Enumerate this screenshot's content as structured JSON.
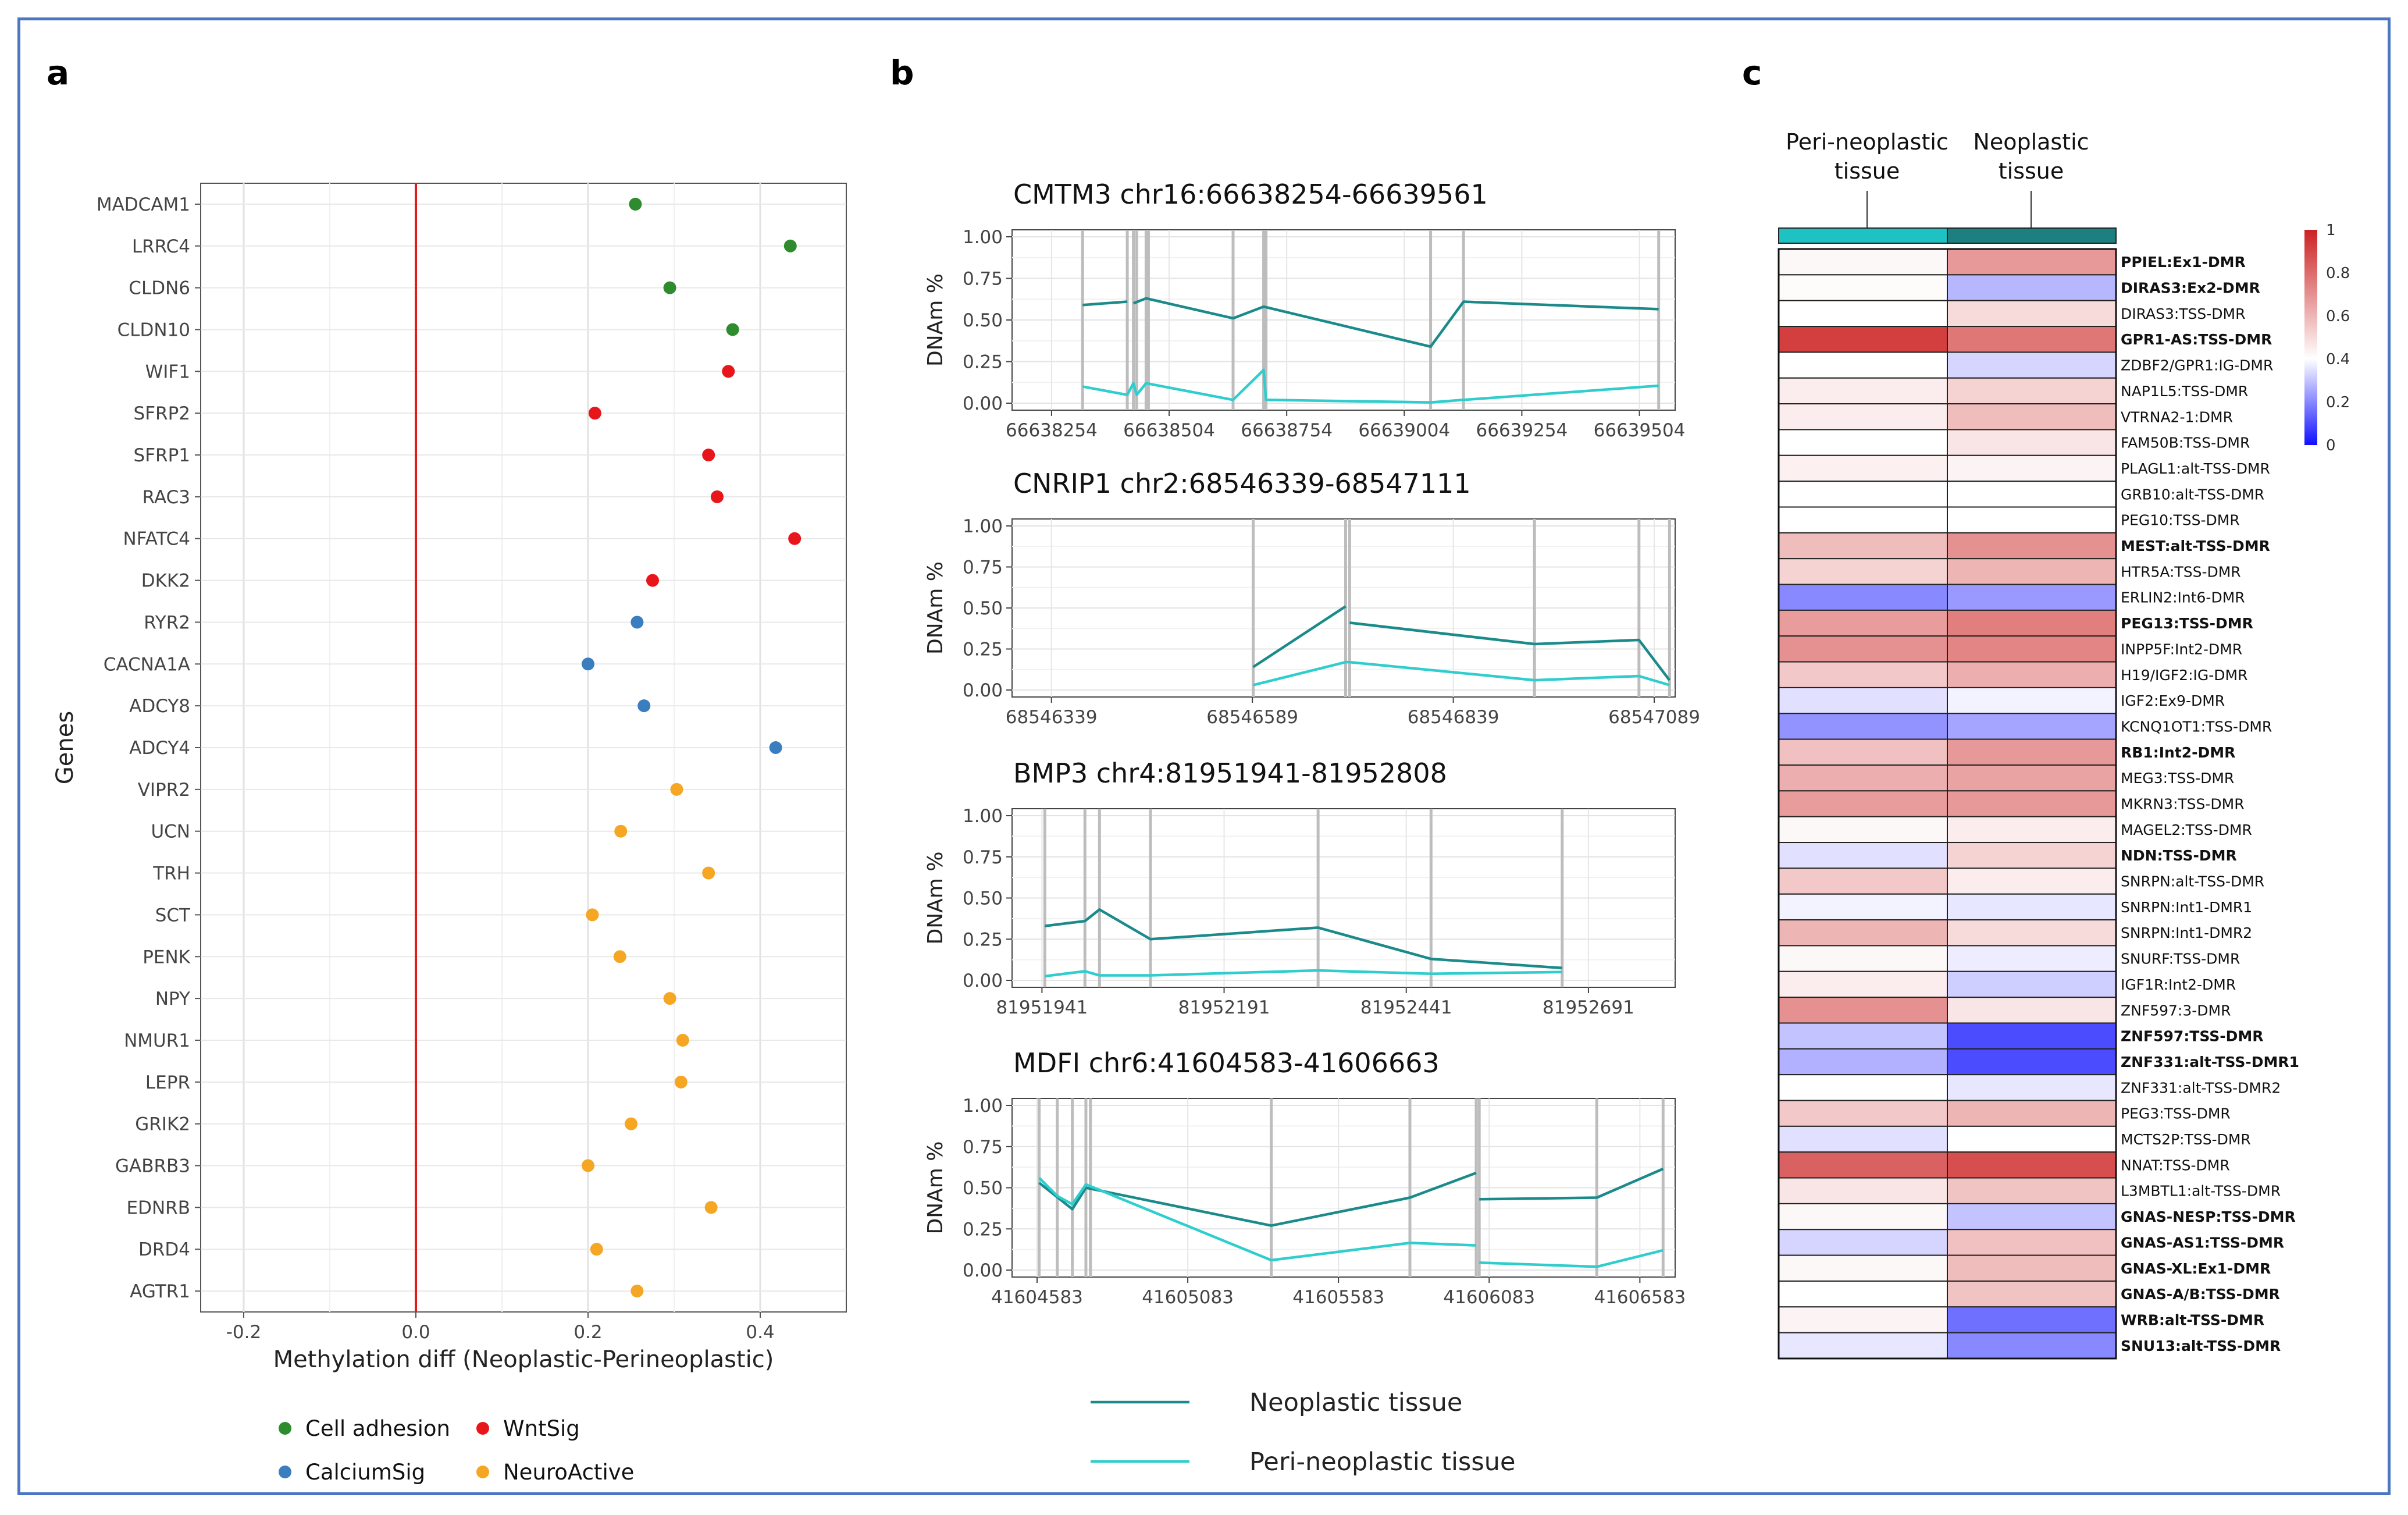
{
  "chart_data": [
    {
      "panel": "a",
      "type": "scatter",
      "title": "",
      "xlabel": "Methylation diff (Neoplastic-Perineoplastic)",
      "ylabel": "Genes",
      "xlim": [
        -0.25,
        0.5
      ],
      "xticks": [
        -0.2,
        0,
        0.2,
        0.4
      ],
      "xtick_labels": [
        "-0.2",
        "0.0",
        "0.2",
        "0.4"
      ],
      "reference_line": 0,
      "genes": [
        "MADCAM1",
        "LRRC4",
        "CLDN6",
        "CLDN10",
        "WIF1",
        "SFRP2",
        "SFRP1",
        "RAC3",
        "NFATC4",
        "DKK2",
        "RYR2",
        "CACNA1A",
        "ADCY8",
        "ADCY4",
        "VIPR2",
        "UCN",
        "TRH",
        "SCT",
        "PENK",
        "NPY",
        "NMUR1",
        "LEPR",
        "GRIK2",
        "GABRB3",
        "EDNRB",
        "DRD4",
        "AGTR1"
      ],
      "values": [
        0.255,
        0.435,
        0.295,
        0.368,
        0.363,
        0.208,
        0.34,
        0.35,
        0.44,
        0.275,
        0.257,
        0.2,
        0.265,
        0.418,
        0.303,
        0.238,
        0.34,
        0.205,
        0.237,
        0.295,
        0.31,
        0.308,
        0.25,
        0.2,
        0.343,
        0.21,
        0.257
      ],
      "groups": [
        "Cell adhesion",
        "Cell adhesion",
        "Cell adhesion",
        "Cell adhesion",
        "WntSig",
        "WntSig",
        "WntSig",
        "WntSig",
        "WntSig",
        "WntSig",
        "CalciumSig",
        "CalciumSig",
        "CalciumSig",
        "CalciumSig",
        "NeuroActive",
        "NeuroActive",
        "NeuroActive",
        "NeuroActive",
        "NeuroActive",
        "NeuroActive",
        "NeuroActive",
        "NeuroActive",
        "NeuroActive",
        "NeuroActive",
        "NeuroActive",
        "NeuroActive",
        "NeuroActive"
      ],
      "legend": [
        {
          "label": "Cell adhesion",
          "color": "#2e8b2e"
        },
        {
          "label": "WntSig",
          "color": "#e8161b"
        },
        {
          "label": "CalciumSig",
          "color": "#3a7ebf"
        },
        {
          "label": "NeuroActive",
          "color": "#f5a623"
        }
      ]
    },
    {
      "panel": "b",
      "type": "line",
      "ylabel": "DNAm %",
      "yticks": [
        0,
        0.25,
        0.5,
        0.75,
        1
      ],
      "ytick_labels": [
        "0.00",
        "0.25",
        "0.50",
        "0.75",
        "1.00"
      ],
      "legend": [
        {
          "label": "Neoplastic tissue",
          "color": "#1a8a8a"
        },
        {
          "label": "Peri-neoplastic tissue",
          "color": "#2fcdcd"
        }
      ],
      "subplots": [
        {
          "title": "CMTM3 chr16:66638254-66639561",
          "xlim": [
            66638170,
            66639580
          ],
          "xticks": [
            66638254,
            66638504,
            66638754,
            66639004,
            66639254,
            66639504
          ],
          "xtick_labels": [
            "66638254",
            "66638504",
            "66638754",
            "66639004",
            "66639254",
            "66639504"
          ],
          "cpg_positions": [
            66638320,
            66638415,
            66638428,
            66638435,
            66638455,
            66638460,
            66638640,
            66638705,
            66638710,
            66639060,
            66639130,
            66639545
          ],
          "series": [
            {
              "name": "Neoplastic tissue",
              "segments": [
                [
                  [
                    66638320,
                    0.59
                  ],
                  [
                    66638415,
                    0.61
                  ]
                ],
                [
                  [
                    66638428,
                    0.6
                  ],
                  [
                    66638455,
                    0.63
                  ],
                  [
                    66638640,
                    0.51
                  ],
                  [
                    66638705,
                    0.58
                  ],
                  [
                    66639060,
                    0.34
                  ],
                  [
                    66639130,
                    0.61
                  ],
                  [
                    66639545,
                    0.565
                  ]
                ]
              ]
            },
            {
              "name": "Peri-neoplastic tissue",
              "segments": [
                [
                  [
                    66638320,
                    0.1
                  ],
                  [
                    66638415,
                    0.05
                  ],
                  [
                    66638428,
                    0.12
                  ],
                  [
                    66638435,
                    0.05
                  ],
                  [
                    66638455,
                    0.12
                  ],
                  [
                    66638640,
                    0.02
                  ],
                  [
                    66638705,
                    0.2
                  ],
                  [
                    66638710,
                    0.02
                  ],
                  [
                    66639060,
                    0.005
                  ],
                  [
                    66639130,
                    0.02
                  ],
                  [
                    66639545,
                    0.105
                  ]
                ]
              ]
            }
          ]
        },
        {
          "title": "CNRIP1 chr2:68546339-68547111",
          "xlim": [
            68546290,
            68547115
          ],
          "xticks": [
            68546339,
            68546589,
            68546839,
            68547089
          ],
          "xtick_labels": [
            "68546339",
            "68546589",
            "68546839",
            "68547089"
          ],
          "cpg_positions": [
            68546590,
            68546705,
            68546710,
            68546940,
            68547070,
            68547108
          ],
          "series": [
            {
              "name": "Neoplastic tissue",
              "segments": [
                [
                  [
                    68546590,
                    0.14
                  ],
                  [
                    68546705,
                    0.51
                  ]
                ],
                [
                  [
                    68546710,
                    0.41
                  ],
                  [
                    68546940,
                    0.28
                  ],
                  [
                    68547070,
                    0.305
                  ],
                  [
                    68547108,
                    0.06
                  ]
                ]
              ]
            },
            {
              "name": "Peri-neoplastic tissue",
              "segments": [
                [
                  [
                    68546590,
                    0.03
                  ],
                  [
                    68546705,
                    0.17
                  ],
                  [
                    68546710,
                    0.17
                  ],
                  [
                    68546940,
                    0.06
                  ],
                  [
                    68547070,
                    0.085
                  ],
                  [
                    68547108,
                    0.03
                  ]
                ]
              ]
            }
          ]
        },
        {
          "title": "BMP3 chr4:81951941-81952808",
          "xlim": [
            81951900,
            81952810
          ],
          "xticks": [
            81951941,
            81952191,
            81952441,
            81952691
          ],
          "xtick_labels": [
            "81951941",
            "81952191",
            "81952441",
            "81952691"
          ],
          "cpg_positions": [
            81951945,
            81952000,
            81952020,
            81952090,
            81952320,
            81952475,
            81952655
          ],
          "series": [
            {
              "name": "Neoplastic tissue",
              "segments": [
                [
                  [
                    81951945,
                    0.33
                  ],
                  [
                    81952000,
                    0.36
                  ],
                  [
                    81952020,
                    0.43
                  ],
                  [
                    81952090,
                    0.25
                  ],
                  [
                    81952320,
                    0.32
                  ],
                  [
                    81952475,
                    0.13
                  ],
                  [
                    81952655,
                    0.075
                  ]
                ]
              ]
            },
            {
              "name": "Peri-neoplastic tissue",
              "segments": [
                [
                  [
                    81951945,
                    0.025
                  ],
                  [
                    81952000,
                    0.055
                  ],
                  [
                    81952020,
                    0.03
                  ],
                  [
                    81952090,
                    0.03
                  ],
                  [
                    81952320,
                    0.06
                  ],
                  [
                    81952475,
                    0.04
                  ],
                  [
                    81952655,
                    0.05
                  ]
                ]
              ]
            }
          ]
        },
        {
          "title": "MDFI chr6:41604583-41606663",
          "xlim": [
            41604500,
            41606700
          ],
          "xticks": [
            41604583,
            41605083,
            41605583,
            41606083,
            41606583
          ],
          "xtick_labels": [
            "41604583",
            "41605083",
            "41605583",
            "41606083",
            "41606583"
          ],
          "cpg_positions": [
            41604590,
            41604650,
            41604700,
            41604745,
            41604760,
            41605360,
            41605820,
            41606040,
            41606050,
            41606440,
            41606660
          ],
          "series": [
            {
              "name": "Neoplastic tissue",
              "segments": [
                [
                  [
                    41604590,
                    0.53
                  ],
                  [
                    41604700,
                    0.37
                  ],
                  [
                    41604745,
                    0.5
                  ],
                  [
                    41605360,
                    0.27
                  ],
                  [
                    41605820,
                    0.44
                  ],
                  [
                    41606040,
                    0.59
                  ]
                ],
                [
                  [
                    41606050,
                    0.43
                  ],
                  [
                    41606440,
                    0.44
                  ],
                  [
                    41606660,
                    0.615
                  ]
                ]
              ]
            },
            {
              "name": "Peri-neoplastic tissue",
              "segments": [
                [
                  [
                    41604590,
                    0.56
                  ],
                  [
                    41604650,
                    0.45
                  ],
                  [
                    41604700,
                    0.4
                  ],
                  [
                    41604745,
                    0.52
                  ],
                  [
                    41605360,
                    0.06
                  ],
                  [
                    41605820,
                    0.165
                  ],
                  [
                    41606040,
                    0.15
                  ]
                ],
                [
                  [
                    41606050,
                    0.045
                  ],
                  [
                    41606440,
                    0.02
                  ],
                  [
                    41606660,
                    0.12
                  ]
                ]
              ]
            }
          ]
        }
      ]
    },
    {
      "panel": "c",
      "type": "heatmap",
      "columns": [
        "Peri-neoplastic tissue",
        "Neoplastic tissue"
      ],
      "column_bar_colors": [
        "#1fc2c2",
        "#1d7f7f"
      ],
      "color_scale": {
        "min": 0,
        "mid": 0.4,
        "max": 1,
        "low_color": "#1010ff",
        "mid_color": "#ffffff",
        "high_color": "#cc2222"
      },
      "colorbar_ticks": [
        0,
        0.2,
        0.4,
        0.6,
        0.8,
        1
      ],
      "colorbar_tick_labels": [
        "0",
        "0.2",
        "0.4",
        "0.6",
        "0.8",
        "1"
      ],
      "rows": [
        "PPIEL:Ex1-DMR",
        "DIRAS3:Ex2-DMR",
        "DIRAS3:TSS-DMR",
        "GPR1-AS:TSS-DMR",
        "ZDBF2/GPR1:IG-DMR",
        "NAP1L5:TSS-DMR",
        "VTRNA2-1:DMR",
        "FAM50B:TSS-DMR",
        "PLAGL1:alt-TSS-DMR",
        "GRB10:alt-TSS-DMR",
        "PEG10:TSS-DMR",
        "MEST:alt-TSS-DMR",
        "HTR5A:TSS-DMR",
        "ERLIN2:Int6-DMR",
        "PEG13:TSS-DMR",
        "INPP5F:Int2-DMR",
        "H19/IGF2:IG-DMR",
        "IGF2:Ex9-DMR",
        "KCNQ1OT1:TSS-DMR",
        "RB1:Int2-DMR",
        "MEG3:TSS-DMR",
        "MKRN3:TSS-DMR",
        "MAGEL2:TSS-DMR",
        "NDN:TSS-DMR",
        "SNRPN:alt-TSS-DMR",
        "SNRPN:Int1-DMR1",
        "SNRPN:Int1-DMR2",
        "SNURF:TSS-DMR",
        "IGF1R:Int2-DMR",
        "ZNF597:3-DMR",
        "ZNF597:TSS-DMR",
        "ZNF331:alt-TSS-DMR1",
        "ZNF331:alt-TSS-DMR2",
        "PEG3:TSS-DMR",
        "MCTS2P:TSS-DMR",
        "NNAT:TSS-DMR",
        "L3MBTL1:alt-TSS-DMR",
        "GNAS-NESP:TSS-DMR",
        "GNAS-AS1:TSS-DMR",
        "GNAS-XL:Ex1-DMR",
        "GNAS-A/B:TSS-DMR",
        "WRB:alt-TSS-DMR",
        "SNU13:alt-TSS-DMR"
      ],
      "bold_rows": [
        true,
        true,
        false,
        true,
        false,
        false,
        false,
        false,
        false,
        false,
        false,
        true,
        false,
        false,
        true,
        false,
        false,
        false,
        false,
        true,
        false,
        false,
        false,
        true,
        false,
        false,
        false,
        false,
        false,
        false,
        true,
        true,
        false,
        false,
        false,
        false,
        false,
        true,
        true,
        true,
        true,
        true,
        true
      ],
      "peri_values": [
        0.42,
        0.41,
        0.4,
        0.92,
        0.4,
        0.45,
        0.45,
        0.4,
        0.44,
        0.4,
        0.4,
        0.58,
        0.52,
        0.2,
        0.67,
        0.7,
        0.55,
        0.35,
        0.22,
        0.57,
        0.62,
        0.67,
        0.42,
        0.35,
        0.55,
        0.38,
        0.6,
        0.42,
        0.45,
        0.7,
        0.3,
        0.27,
        0.4,
        0.55,
        0.35,
        0.83,
        0.47,
        0.42,
        0.33,
        0.42,
        0.4,
        0.43,
        0.36
      ],
      "neo_values": [
        0.68,
        0.28,
        0.5,
        0.77,
        0.33,
        0.52,
        0.58,
        0.47,
        0.43,
        0.4,
        0.4,
        0.7,
        0.6,
        0.23,
        0.75,
        0.73,
        0.62,
        0.38,
        0.25,
        0.68,
        0.65,
        0.68,
        0.45,
        0.52,
        0.45,
        0.36,
        0.5,
        0.37,
        0.32,
        0.47,
        0.1,
        0.1,
        0.36,
        0.6,
        0.4,
        0.88,
        0.56,
        0.3,
        0.57,
        0.58,
        0.56,
        0.16,
        0.2
      ]
    }
  ],
  "panel_labels": {
    "a": "a",
    "b": "b",
    "c": "c"
  },
  "legend_b_title": "",
  "heatmap_headers": {
    "peri": [
      "Peri-neoplastic",
      "tissue"
    ],
    "neo": [
      "Neoplastic",
      "tissue"
    ]
  }
}
